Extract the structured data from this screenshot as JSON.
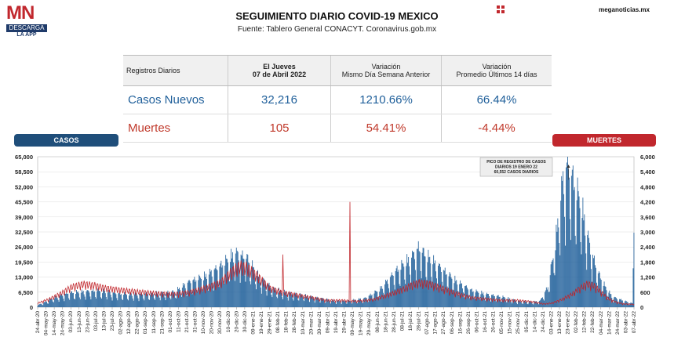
{
  "header": {
    "logo_text": "MN",
    "logo_band": "DESCARGA",
    "logo_app": "LA APP",
    "title": "SEGUIMIENTO DIARIO COVID-19 MEXICO",
    "subtitle": "Fuente: Tablero General CONACYT. Coronavirus.gob.mx",
    "site": "meganoticias.mx"
  },
  "stats_table": {
    "headers": [
      "Registros Diarios",
      "El Jueves",
      "07 de Abril 2022",
      "Variación",
      "Mismo Día Semana Anterior",
      "Variación",
      "Promedio Últimos 14 días"
    ],
    "rows": [
      {
        "label": "Casos Nuevos",
        "value": "32,216",
        "var_week": "1210.66%",
        "var_14d": "66.44%"
      },
      {
        "label": "Muertes",
        "value": "105",
        "var_week": "54.41%",
        "var_14d": "-4.44%"
      }
    ]
  },
  "labels": {
    "casos": "CASOS",
    "muertes": "MUERTES"
  },
  "colors": {
    "casos": "#1f5f9a",
    "muertes": "#c1272d"
  },
  "chart_data": {
    "type": "bar",
    "y_left": {
      "range": [
        0,
        65000
      ],
      "ticks": [
        "65,000",
        "58,500",
        "52,000",
        "45,500",
        "39,000",
        "32,500",
        "26,000",
        "19,500",
        "13,000",
        "6,500",
        "0"
      ]
    },
    "y_right": {
      "range": [
        0,
        6000
      ],
      "ticks": [
        "6,000",
        "5,400",
        "4,800",
        "4,200",
        "3,600",
        "3,000",
        "2,400",
        "1,800",
        "1,200",
        "600",
        "0"
      ]
    },
    "x_ticks": [
      "24-abr-20",
      "04-may-20",
      "14-may-20",
      "24-may-20",
      "03-jun-20",
      "13-jun-20",
      "23-jun-20",
      "03-jul-20",
      "13-jul-20",
      "23-jul-20",
      "02-ago-20",
      "12-ago-20",
      "22-ago-20",
      "01-sep-20",
      "11-sep-20",
      "21-sep-20",
      "01-oct-20",
      "11-oct-20",
      "21-oct-20",
      "31-oct-20",
      "10-nov-20",
      "20-nov-20",
      "30-nov-20",
      "10-dic-20",
      "20-dic-20",
      "30-dic-20",
      "09-ene-21",
      "19-ene-21",
      "29-ene-21",
      "08-feb-21",
      "18-feb-21",
      "28-feb-21",
      "10-mar-21",
      "20-mar-21",
      "30-mar-21",
      "09-abr-21",
      "19-abr-21",
      "29-abr-21",
      "09-may-21",
      "19-may-21",
      "29-may-21",
      "08-jun-21",
      "18-jun-21",
      "28-jun-21",
      "08-jul-21",
      "18-jul-21",
      "28-jul-21",
      "07-ago-21",
      "17-ago-21",
      "27-ago-21",
      "06-sep-21",
      "16-sep-21",
      "26-sep-21",
      "06-oct-21",
      "16-oct-21",
      "26-oct-21",
      "05-nov-21",
      "15-nov-21",
      "25-nov-21",
      "05-dic-21",
      "14-dic-21",
      "24-dic-21",
      "03-ene-22",
      "13-ene-22",
      "23-ene-22",
      "02-feb-22",
      "12-feb-22",
      "22-feb-22",
      "04-mar-22",
      "14-mar-22",
      "24-mar-22",
      "03-abr-22",
      "07-abr-22"
    ],
    "annotation": {
      "lines": [
        "PICO DE REGISTRO DE CASOS",
        "DIARIOS 19 ENERO 22",
        "60,552 CASOS DIARIOS"
      ]
    },
    "series": [
      {
        "axis": "left",
        "kind": "bar",
        "anchors": [
          [
            0,
            800
          ],
          [
            10,
            2000
          ],
          [
            20,
            3500
          ],
          [
            40,
            5500
          ],
          [
            60,
            6000
          ],
          [
            80,
            6500
          ],
          [
            100,
            5500
          ],
          [
            120,
            5000
          ],
          [
            140,
            5200
          ],
          [
            160,
            5500
          ],
          [
            180,
            6000
          ],
          [
            200,
            10000
          ],
          [
            220,
            12000
          ],
          [
            240,
            16000
          ],
          [
            260,
            21000
          ],
          [
            275,
            19000
          ],
          [
            290,
            12000
          ],
          [
            310,
            7000
          ],
          [
            330,
            5500
          ],
          [
            350,
            4500
          ],
          [
            370,
            3500
          ],
          [
            390,
            2500
          ],
          [
            410,
            2500
          ],
          [
            430,
            3500
          ],
          [
            450,
            7000
          ],
          [
            470,
            14000
          ],
          [
            490,
            19000
          ],
          [
            500,
            23000
          ],
          [
            510,
            20000
          ],
          [
            530,
            15000
          ],
          [
            550,
            10000
          ],
          [
            570,
            6500
          ],
          [
            590,
            5000
          ],
          [
            610,
            4000
          ],
          [
            630,
            2500
          ],
          [
            650,
            2000
          ],
          [
            660,
            2500
          ],
          [
            670,
            8000
          ],
          [
            680,
            25000
          ],
          [
            690,
            50000
          ],
          [
            696,
            55000
          ],
          [
            705,
            48000
          ],
          [
            715,
            38000
          ],
          [
            725,
            24000
          ],
          [
            735,
            14000
          ],
          [
            745,
            8000
          ],
          [
            755,
            4000
          ],
          [
            765,
            3000
          ],
          [
            775,
            2000
          ],
          [
            781,
            1500
          ],
          [
            783,
            32216
          ]
        ]
      },
      {
        "axis": "right",
        "kind": "line",
        "anchors": [
          [
            0,
            150
          ],
          [
            15,
            300
          ],
          [
            30,
            500
          ],
          [
            45,
            750
          ],
          [
            60,
            850
          ],
          [
            75,
            800
          ],
          [
            90,
            700
          ],
          [
            105,
            650
          ],
          [
            120,
            600
          ],
          [
            140,
            550
          ],
          [
            160,
            500
          ],
          [
            180,
            480
          ],
          [
            200,
            550
          ],
          [
            220,
            700
          ],
          [
            240,
            900
          ],
          [
            255,
            1300
          ],
          [
            265,
            1500
          ],
          [
            275,
            1450
          ],
          [
            290,
            1100
          ],
          [
            305,
            700
          ],
          [
            320,
            550
          ],
          [
            340,
            450
          ],
          [
            360,
            350
          ],
          [
            380,
            250
          ],
          [
            400,
            250
          ],
          [
            420,
            220
          ],
          [
            440,
            280
          ],
          [
            460,
            450
          ],
          [
            475,
            600
          ],
          [
            490,
            800
          ],
          [
            500,
            900
          ],
          [
            515,
            850
          ],
          [
            530,
            700
          ],
          [
            550,
            500
          ],
          [
            570,
            350
          ],
          [
            590,
            300
          ],
          [
            610,
            250
          ],
          [
            630,
            250
          ],
          [
            650,
            200
          ],
          [
            665,
            120
          ],
          [
            675,
            150
          ],
          [
            685,
            250
          ],
          [
            700,
            450
          ],
          [
            710,
            650
          ],
          [
            720,
            850
          ],
          [
            730,
            800
          ],
          [
            740,
            550
          ],
          [
            750,
            300
          ],
          [
            760,
            180
          ],
          [
            770,
            120
          ],
          [
            783,
            105
          ]
        ],
        "spikes": [
          [
            322,
            2100
          ],
          [
            410,
            4200
          ]
        ]
      }
    ]
  }
}
